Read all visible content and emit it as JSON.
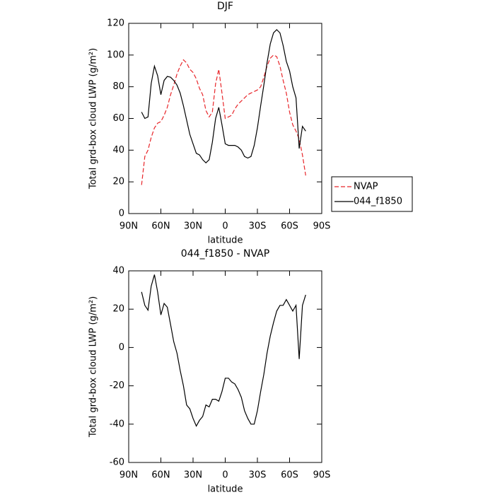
{
  "chart_data": [
    {
      "type": "line",
      "title": "DJF",
      "xlabel": "latitude",
      "ylabel": "Total grd-box cloud LWP (g/m²)",
      "x": [
        78,
        75,
        72,
        69,
        66,
        63,
        60,
        57,
        54,
        51,
        48,
        45,
        42,
        39,
        36,
        33,
        30,
        27,
        24,
        21,
        18,
        15,
        12,
        9,
        6,
        3,
        0,
        -3,
        -6,
        -9,
        -12,
        -15,
        -18,
        -21,
        -24,
        -27,
        -30,
        -33,
        -36,
        -39,
        -42,
        -45,
        -48,
        -51,
        -54,
        -57,
        -60,
        -63,
        -66,
        -69,
        -72,
        -75
      ],
      "series": [
        {
          "name": "NVAP",
          "color": "#e8262a",
          "style": "dashed",
          "values": [
            18,
            36,
            40,
            48,
            54,
            57,
            58,
            62,
            67,
            75,
            81,
            88,
            93,
            97,
            95,
            91,
            89,
            85,
            79,
            75,
            65,
            61,
            64,
            82,
            91,
            76,
            60,
            61,
            62,
            66,
            69,
            71,
            73,
            75,
            76,
            77,
            78,
            80,
            86,
            93,
            98,
            100,
            99,
            93,
            84,
            76,
            64,
            56,
            52,
            47,
            37,
            24
          ]
        },
        {
          "name": "044_f1850",
          "color": "#000000",
          "style": "solid",
          "values": [
            64,
            60,
            61,
            82,
            93,
            87,
            75,
            84,
            86.5,
            86,
            84,
            81,
            76,
            68,
            59,
            50,
            44,
            38,
            37,
            34,
            32,
            34,
            45,
            60,
            67,
            56,
            44,
            43,
            43,
            43,
            42,
            40,
            36,
            35,
            36,
            43,
            54,
            68,
            81,
            95,
            107,
            114,
            116,
            114,
            106,
            96,
            90,
            80,
            73,
            41,
            55,
            52
          ]
        }
      ],
      "xlim": [
        90,
        -90
      ],
      "xticks": [
        {
          "value": 90,
          "label": "90N"
        },
        {
          "value": 60,
          "label": "60N"
        },
        {
          "value": 30,
          "label": "30N"
        },
        0,
        {
          "value": -30,
          "label": "30S"
        },
        {
          "value": -60,
          "label": "60S"
        },
        {
          "value": -90,
          "label": "90S"
        }
      ],
      "ylim": [
        0,
        120
      ],
      "yticks": [
        0,
        20,
        40,
        60,
        80,
        100,
        120
      ],
      "legend": "outside-right"
    },
    {
      "type": "line",
      "title": "044_f1850 - NVAP",
      "xlabel": "latitude",
      "ylabel": "Total grd-box cloud LWP (g/m²)",
      "x": [
        78,
        75,
        72,
        69,
        66,
        63,
        60,
        57,
        54,
        51,
        48,
        45,
        42,
        39,
        36,
        33,
        30,
        27,
        24,
        21,
        18,
        15,
        12,
        9,
        6,
        3,
        0,
        -3,
        -6,
        -9,
        -12,
        -15,
        -18,
        -21,
        -24,
        -27,
        -30,
        -33,
        -36,
        -39,
        -42,
        -45,
        -48,
        -51,
        -54,
        -57,
        -60,
        -63,
        -66,
        -69,
        -72,
        -75
      ],
      "values": [
        29,
        22,
        19.5,
        32,
        38,
        29,
        17,
        23,
        21,
        12,
        3,
        -3,
        -12,
        -20,
        -30,
        -32,
        -37,
        -41,
        -38,
        -36,
        -30,
        -31,
        -27,
        -27,
        -28,
        -23,
        -16,
        -16,
        -18,
        -19,
        -22,
        -26,
        -33,
        -37,
        -40,
        -40,
        -33,
        -23,
        -14,
        -3,
        6,
        13,
        19,
        22,
        22,
        25,
        22,
        19,
        22,
        -6,
        22,
        27.5
      ],
      "color": "#000000",
      "style": "solid",
      "xlim": [
        90,
        -90
      ],
      "xticks": [
        {
          "value": 90,
          "label": "90N"
        },
        {
          "value": 60,
          "label": "60N"
        },
        {
          "value": 30,
          "label": "30N"
        },
        0,
        {
          "value": -30,
          "label": "30S"
        },
        {
          "value": -60,
          "label": "60S"
        },
        {
          "value": -90,
          "label": "90S"
        }
      ],
      "ylim": [
        -60,
        40
      ],
      "yticks": [
        -60,
        -40,
        -20,
        0,
        20,
        40
      ]
    }
  ]
}
